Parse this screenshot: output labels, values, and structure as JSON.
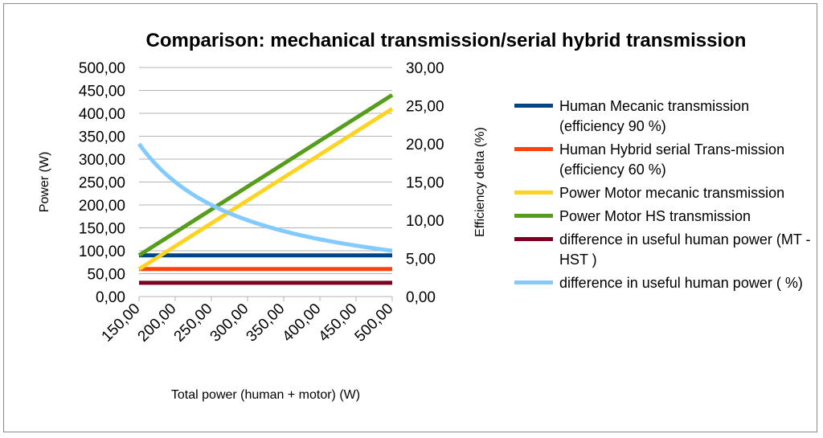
{
  "chart_data": {
    "type": "line",
    "title": "Comparison: mechanical transmission/serial hybrid transmission",
    "xlabel": "Total power (human + motor) (W)",
    "ylabel": "Power (W)",
    "y2label": "Efficiency delta (%)",
    "x": [
      150,
      200,
      250,
      300,
      350,
      400,
      450,
      500
    ],
    "xticks": [
      "150,00",
      "200,00",
      "250,00",
      "300,00",
      "350,00",
      "400,00",
      "450,00",
      "500,00"
    ],
    "yticks": [
      "0,00",
      "50,00",
      "100,00",
      "150,00",
      "200,00",
      "250,00",
      "300,00",
      "350,00",
      "400,00",
      "450,00",
      "500,00"
    ],
    "y2ticks": [
      "0,00",
      "5,00",
      "10,00",
      "15,00",
      "20,00",
      "25,00",
      "30,00"
    ],
    "ylim": [
      0,
      500
    ],
    "y2lim": [
      0,
      30
    ],
    "grid": true,
    "legend_position": "right",
    "series": [
      {
        "name": "Human Mecanic transmission (efficiency 90 %)",
        "axis": "left",
        "color": "#004586",
        "values": [
          90,
          90,
          90,
          90,
          90,
          90,
          90,
          90
        ]
      },
      {
        "name": "Human Hybrid serial Trans-mission (efficiency 60 %)",
        "axis": "left",
        "color": "#ff420e",
        "values": [
          60,
          60,
          60,
          60,
          60,
          60,
          60,
          60
        ]
      },
      {
        "name": "Power Motor mecanic transmission",
        "axis": "left",
        "color": "#ffd320",
        "values": [
          60,
          110,
          160,
          210,
          260,
          310,
          360,
          410
        ]
      },
      {
        "name": "Power Motor HS transmission",
        "axis": "left",
        "color": "#579d1c",
        "values": [
          90,
          140,
          190,
          240,
          290,
          340,
          390,
          440
        ]
      },
      {
        "name": "difference in useful human power (MT - HST )",
        "axis": "left",
        "color": "#7e0021",
        "values": [
          30,
          30,
          30,
          30,
          30,
          30,
          30,
          30
        ]
      },
      {
        "name": "difference in useful human power ( %)",
        "axis": "right",
        "color": "#83caff",
        "values": [
          20,
          15,
          12,
          10,
          8.57,
          7.5,
          6.67,
          6
        ]
      }
    ]
  }
}
